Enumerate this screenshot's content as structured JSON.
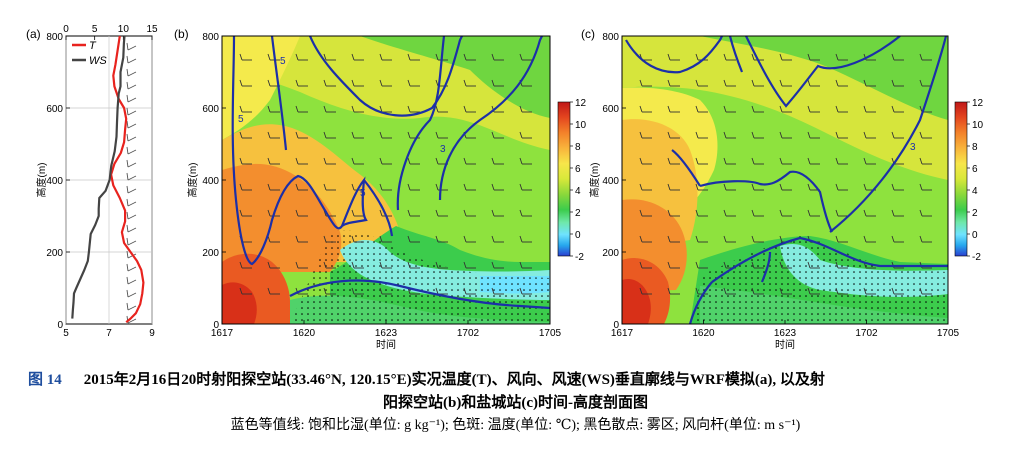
{
  "chart_data": [
    {
      "panel_label": "(a)",
      "type": "line",
      "ylabel": "高度(m)",
      "ylim": [
        0,
        800
      ],
      "yticks": [
        0,
        200,
        400,
        600,
        800
      ],
      "x_bottom": {
        "ticks": [
          "5",
          "7",
          "9"
        ],
        "range": [
          5,
          9
        ]
      },
      "x_top": {
        "ticks": [
          "0",
          "5",
          "10",
          "15"
        ],
        "range": [
          0,
          15
        ]
      },
      "legend": [
        "T",
        "WS"
      ],
      "series": [
        {
          "name": "T",
          "color": "#e8231e",
          "axis": "bottom",
          "points": [
            [
              7.5,
              800
            ],
            [
              7.4,
              760
            ],
            [
              7.3,
              720
            ],
            [
              7.2,
              690
            ],
            [
              7.25,
              660
            ],
            [
              7.45,
              625
            ],
            [
              7.7,
              600
            ],
            [
              7.8,
              570
            ],
            [
              7.75,
              540
            ],
            [
              7.7,
              505
            ],
            [
              7.55,
              475
            ],
            [
              7.25,
              445
            ],
            [
              7.1,
              415
            ],
            [
              7.2,
              385
            ],
            [
              7.5,
              350
            ],
            [
              7.75,
              315
            ],
            [
              7.75,
              285
            ],
            [
              7.6,
              255
            ],
            [
              7.7,
              225
            ],
            [
              8.0,
              200
            ],
            [
              8.3,
              175
            ],
            [
              8.5,
              150
            ],
            [
              8.6,
              115
            ],
            [
              8.55,
              85
            ],
            [
              8.45,
              55
            ],
            [
              8.25,
              30
            ],
            [
              8.0,
              15
            ],
            [
              7.8,
              5
            ]
          ]
        },
        {
          "name": "WS",
          "color": "#444444",
          "axis": "top",
          "points": [
            [
              10.2,
              800
            ],
            [
              10.1,
              780
            ],
            [
              10.0,
              740
            ],
            [
              9.5,
              700
            ],
            [
              9.5,
              660
            ],
            [
              9.2,
              640
            ],
            [
              9.0,
              600
            ],
            [
              8.9,
              560
            ],
            [
              8.8,
              520
            ],
            [
              8.5,
              480
            ],
            [
              7.9,
              440
            ],
            [
              7.6,
              400
            ],
            [
              6.9,
              370
            ],
            [
              5.8,
              350
            ],
            [
              5.7,
              320
            ],
            [
              5.7,
              300
            ],
            [
              5.1,
              275
            ],
            [
              4.3,
              250
            ],
            [
              4.0,
              200
            ],
            [
              3.8,
              175
            ],
            [
              3.2,
              150
            ],
            [
              2.5,
              125
            ],
            [
              1.8,
              100
            ],
            [
              1.4,
              85
            ],
            [
              1.3,
              60
            ],
            [
              1.2,
              40
            ],
            [
              1.1,
              15
            ]
          ]
        }
      ]
    },
    {
      "panel_label": "(b)",
      "type": "heatmap",
      "xlabel": "时间",
      "ylabel": "高度(m)",
      "xticks": [
        "1617",
        "1620",
        "1623",
        "1702",
        "1705"
      ],
      "yticks": [
        0,
        200,
        400,
        600,
        800
      ],
      "ylim": [
        0,
        800
      ],
      "colorbar": {
        "ticks": [
          -2,
          0,
          2,
          4,
          6,
          8,
          10,
          12
        ],
        "range": [
          -2,
          12
        ]
      },
      "contour_labels": [
        "5",
        "5",
        "3",
        "5"
      ]
    },
    {
      "panel_label": "(c)",
      "type": "heatmap",
      "xlabel": "时间",
      "ylabel": "高度(m)",
      "xticks": [
        "1617",
        "1620",
        "1623",
        "1702",
        "1705"
      ],
      "yticks": [
        0,
        200,
        400,
        600,
        800
      ],
      "ylim": [
        0,
        800
      ],
      "colorbar": {
        "ticks": [
          -2,
          0,
          2,
          4,
          6,
          8,
          10,
          12
        ],
        "range": [
          -2,
          12
        ]
      },
      "contour_labels": [
        "3"
      ]
    }
  ],
  "caption": {
    "fig_number": "图 14",
    "line1": "2015年2月16日20时射阳探空站(33.46°N, 120.15°E)实况温度(T)、风向、风速(WS)垂直廓线与WRF模拟(a), 以及射",
    "line2": "阳探空站(b)和盐城站(c)时间-高度剖面图",
    "line3": "蓝色等值线: 饱和比湿(单位: g kg⁻¹); 色斑: 温度(单位: ℃); 黑色散点: 雾区; 风向杆(单位: m s⁻¹)"
  },
  "colors": {
    "contour": "#1c2fa8",
    "temp_line": "#e8231e",
    "ws_line": "#444444",
    "caption_blue": "#1f4e9e"
  }
}
